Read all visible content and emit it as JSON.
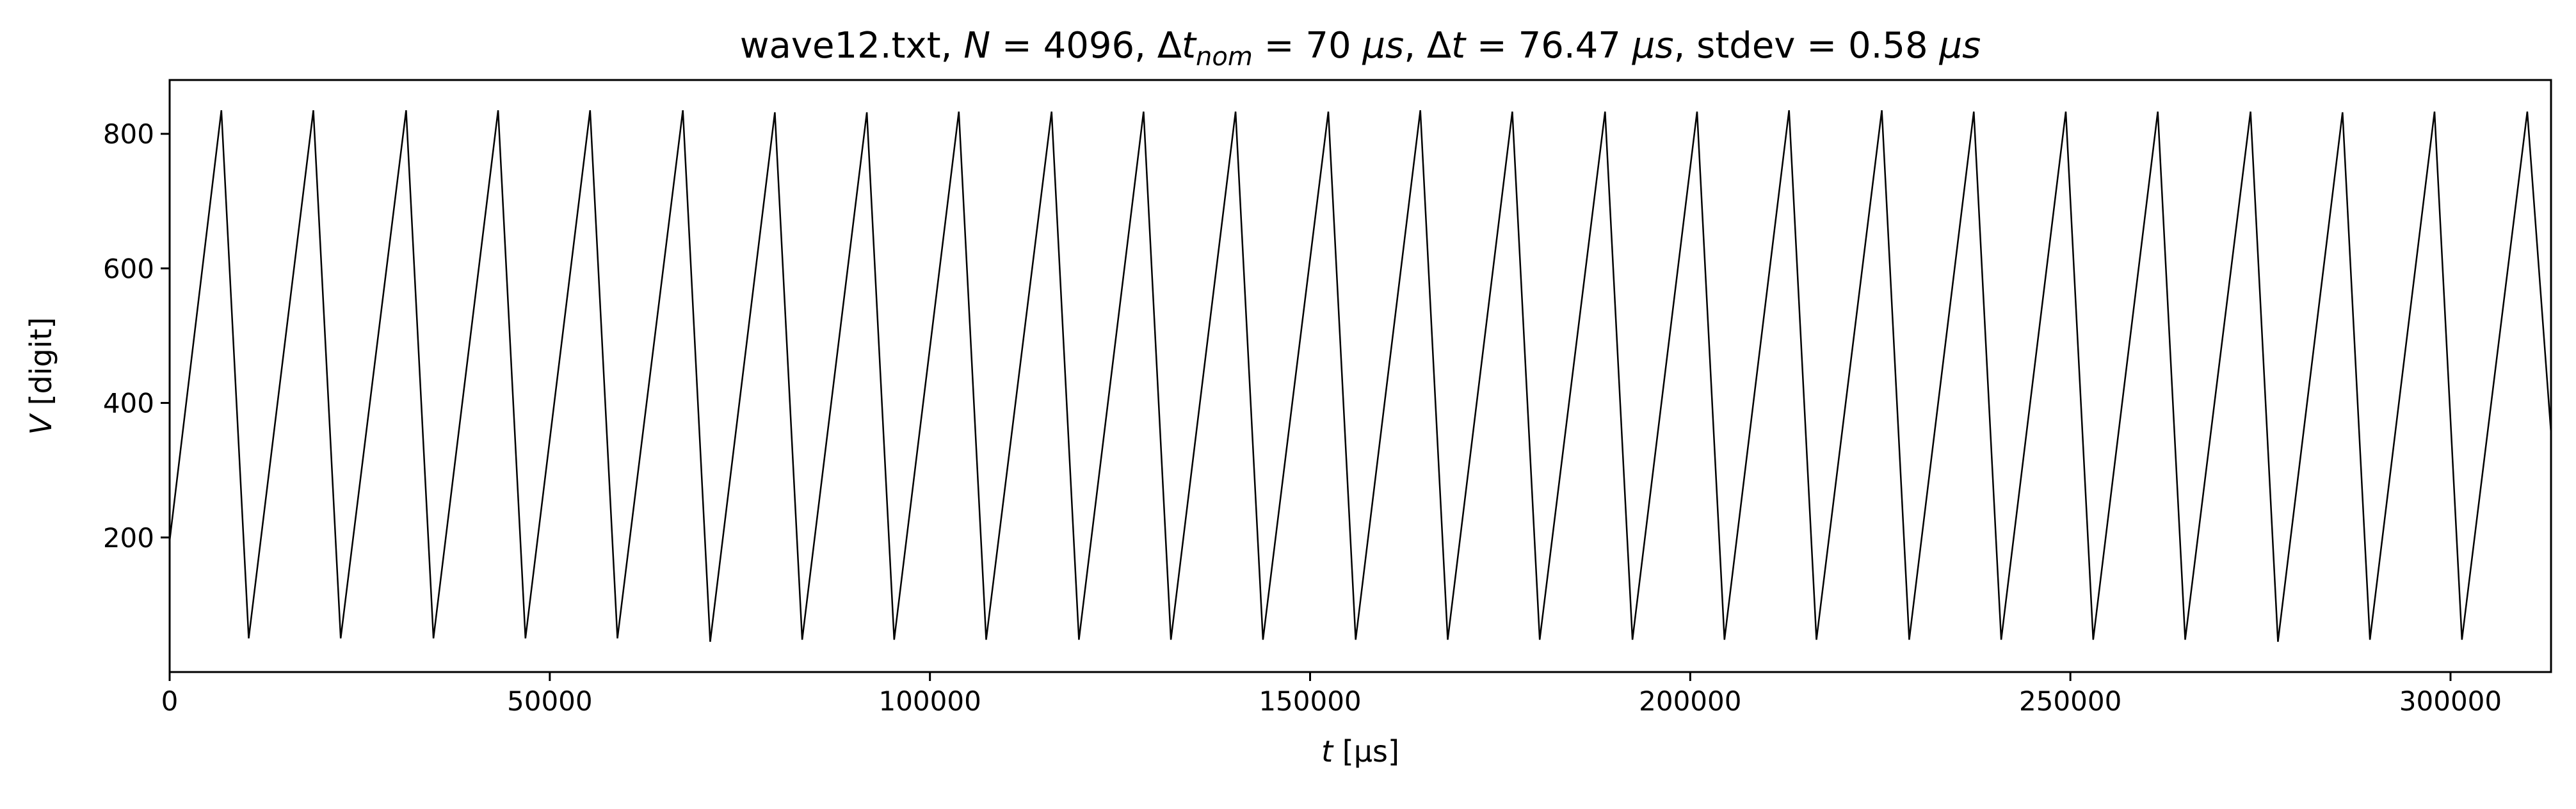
{
  "chart_data": {
    "type": "line",
    "title": {
      "file": "wave12.txt, ",
      "n_var": "N",
      "n_val": " = 4096, ",
      "dtnom_delta": "Δ",
      "dtnom_var": "t",
      "dtnom_sub": "nom",
      "dtnom_val": " = 70 ",
      "dtnom_unit": "μs",
      "sep1": ", ",
      "dt_delta": "Δ",
      "dt_var": "t",
      "dt_val": " = 76.47 ",
      "dt_unit": "μs",
      "stdev_text": ", stdev = 0.58 ",
      "stdev_unit": "μs"
    },
    "xlabel": {
      "var": "t",
      "unit": " [μs]"
    },
    "ylabel": {
      "var": "V",
      "unit": " [digit]"
    },
    "xlim": [
      0,
      313221
    ],
    "ylim": [
      0,
      880
    ],
    "xticks": [
      {
        "value": 0,
        "label": "0"
      },
      {
        "value": 50000,
        "label": "50000"
      },
      {
        "value": 100000,
        "label": "100000"
      },
      {
        "value": 150000,
        "label": "150000"
      },
      {
        "value": 200000,
        "label": "200000"
      },
      {
        "value": 250000,
        "label": "250000"
      },
      {
        "value": 300000,
        "label": "300000"
      }
    ],
    "yticks": [
      {
        "value": 200,
        "label": "200"
      },
      {
        "value": 400,
        "label": "400"
      },
      {
        "value": 600,
        "label": "600"
      },
      {
        "value": 800,
        "label": "800"
      }
    ],
    "grid": false,
    "legend": "none",
    "series": [
      {
        "color": "#000000",
        "x": [
          0,
          6800,
          10400,
          18900,
          22500,
          31100,
          34700,
          43200,
          46800,
          55300,
          58900,
          67500,
          71100,
          79600,
          83200,
          91700,
          95300,
          103800,
          107400,
          116000,
          119600,
          128100,
          131700,
          140200,
          143800,
          152400,
          156000,
          164500,
          168100,
          176600,
          180200,
          188800,
          192400,
          200900,
          204500,
          213000,
          216600,
          225200,
          228800,
          237300,
          240900,
          249400,
          253000,
          261500,
          265100,
          273700,
          277300,
          285800,
          289400,
          297900,
          301500,
          310100,
          313221
        ],
        "y": [
          195,
          835,
          50,
          835,
          50,
          835,
          50,
          835,
          50,
          835,
          50,
          835,
          45,
          832,
          48,
          832,
          48,
          833,
          48,
          833,
          48,
          833,
          48,
          833,
          48,
          833,
          48,
          835,
          48,
          833,
          48,
          833,
          48,
          833,
          48,
          835,
          48,
          835,
          48,
          833,
          48,
          833,
          48,
          833,
          48,
          833,
          45,
          832,
          48,
          833,
          48,
          833,
          355
        ]
      }
    ]
  }
}
